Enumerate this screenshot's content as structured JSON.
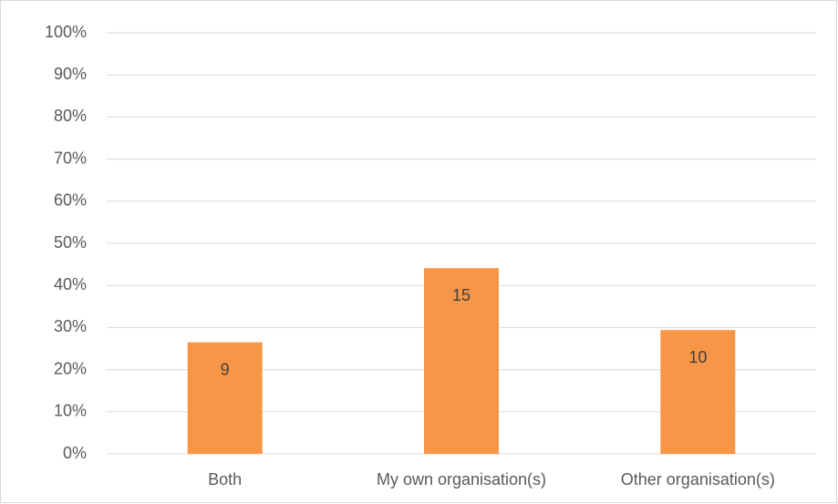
{
  "chart_data": {
    "type": "bar",
    "categories": [
      "Both",
      "My own organisation(s)",
      "Other organisation(s)"
    ],
    "values": [
      26.5,
      44.1,
      29.4
    ],
    "counts": [
      9,
      15,
      10
    ],
    "color": "#f79646",
    "ylim": [
      0,
      100
    ],
    "yticks": [
      {
        "value": 0,
        "label": "0%"
      },
      {
        "value": 10,
        "label": "10%"
      },
      {
        "value": 20,
        "label": "20%"
      },
      {
        "value": 30,
        "label": "30%"
      },
      {
        "value": 40,
        "label": "40%"
      },
      {
        "value": 50,
        "label": "50%"
      },
      {
        "value": 60,
        "label": "60%"
      },
      {
        "value": 70,
        "label": "70%"
      },
      {
        "value": 80,
        "label": "80%"
      },
      {
        "value": 90,
        "label": "90%"
      },
      {
        "value": 100,
        "label": "100%"
      }
    ],
    "grid": true
  }
}
